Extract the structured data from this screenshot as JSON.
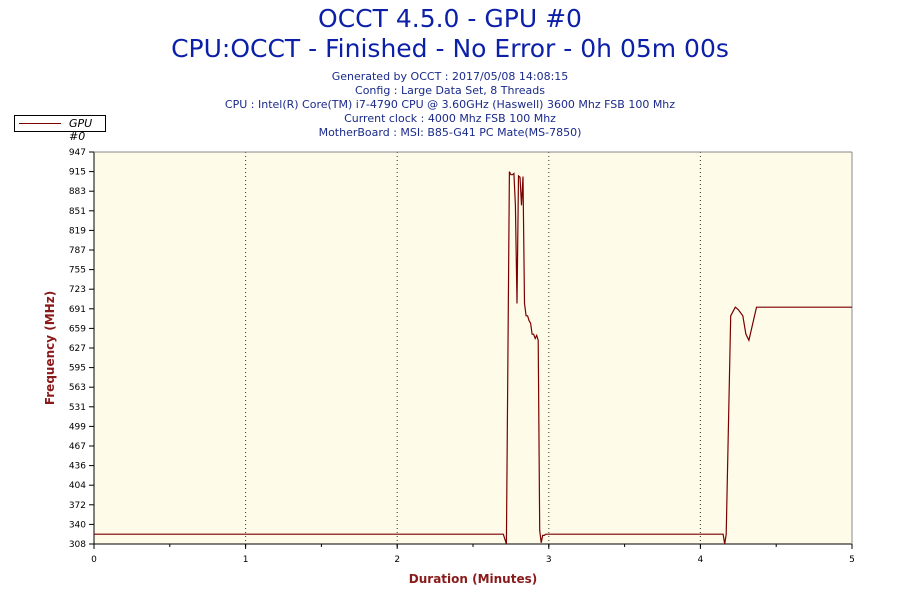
{
  "header": {
    "title": "OCCT 4.5.0 - GPU #0",
    "subtitle": "CPU:OCCT - Finished - No Error - 0h 05m 00s",
    "info_lines": [
      "Generated by OCCT : 2017/05/08 14:08:15",
      "Config : Large Data Set, 8 Threads",
      "CPU : Intel(R) Core(TM) i7-4790 CPU @ 3.60GHz (Haswell) 3600 Mhz FSB 100 Mhz",
      "Current clock : 4000 Mhz FSB 100 Mhz",
      "MotherBoard : MSI: B85-G41 PC Mate(MS-7850)"
    ]
  },
  "legend": {
    "label": "GPU #0"
  },
  "colors": {
    "title": "#0b1fa8",
    "series": "#7a0000",
    "plot_bg": "#fffbe9",
    "axis_title": "#8a1a1a"
  },
  "chart_data": {
    "type": "line",
    "title": "OCCT 4.5.0 - GPU #0",
    "xlabel": "Duration (Minutes)",
    "ylabel": "Frequency (MHz)",
    "xlim": [
      0,
      5
    ],
    "ylim": [
      308,
      947
    ],
    "x_ticks": [
      "0",
      "1",
      "2",
      "3",
      "4",
      "5"
    ],
    "y_ticks": [
      "947",
      "915",
      "883",
      "851",
      "819",
      "787",
      "755",
      "723",
      "691",
      "659",
      "627",
      "595",
      "563",
      "531",
      "499",
      "467",
      "436",
      "404",
      "372",
      "340",
      "308"
    ],
    "grid": "vertical dotted",
    "legend_position": "top-left",
    "series": [
      {
        "name": "GPU #0",
        "x": [
          0,
          2.7,
          2.72,
          2.74,
          2.75,
          2.76,
          2.77,
          2.78,
          2.79,
          2.8,
          2.81,
          2.82,
          2.83,
          2.84,
          2.85,
          2.86,
          2.87,
          2.88,
          2.89,
          2.9,
          2.91,
          2.92,
          2.93,
          2.94,
          2.95,
          2.96,
          2.97,
          2.98,
          3.0,
          4.15,
          4.16,
          4.17,
          4.2,
          4.23,
          4.25,
          4.28,
          4.3,
          4.32,
          4.37,
          5.0
        ],
        "y": [
          324,
          324,
          308,
          915,
          910,
          910,
          912,
          860,
          700,
          908,
          906,
          860,
          907,
          700,
          680,
          680,
          672,
          668,
          650,
          650,
          643,
          648,
          640,
          330,
          310,
          322,
          322,
          324,
          324,
          324,
          308,
          324,
          680,
          694,
          690,
          680,
          650,
          640,
          694,
          694
        ]
      }
    ]
  }
}
